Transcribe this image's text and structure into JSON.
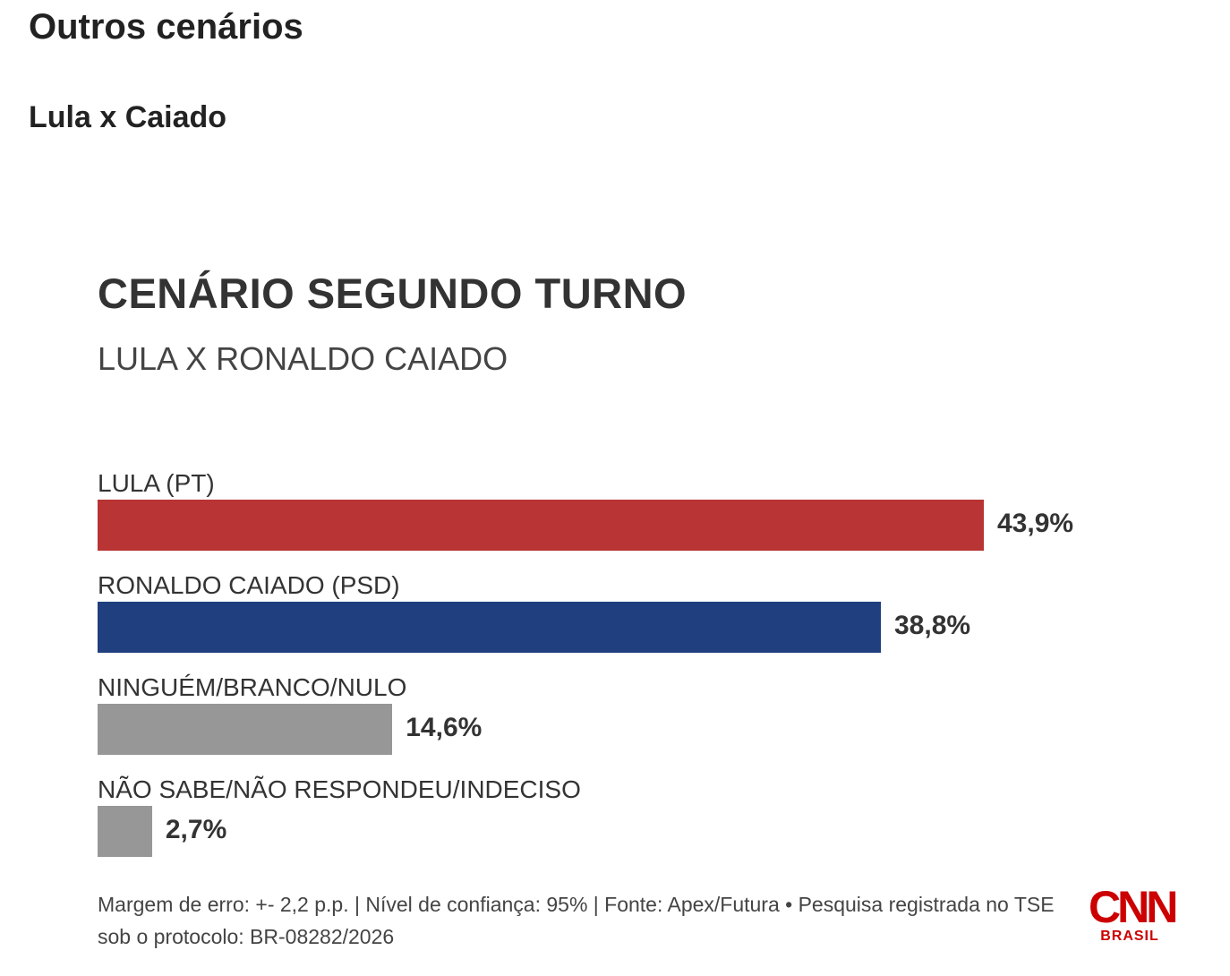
{
  "header": {
    "title": "Outros cenários",
    "subtitle": "Lula x Caiado"
  },
  "chart_data": {
    "type": "bar",
    "orientation": "horizontal",
    "title": "CENÁRIO SEGUNDO TURNO",
    "subtitle": "LULA X RONALDO CAIADO",
    "categories": [
      "LULA (PT)",
      "RONALDO CAIADO (PSD)",
      "NINGUÉM/BRANCO/NULO",
      "NÃO SABE/NÃO RESPONDEU/INDECISO"
    ],
    "values": [
      43.9,
      38.8,
      14.6,
      2.7
    ],
    "value_labels": [
      "43,9%",
      "38,8%",
      "14,6%",
      "2,7%"
    ],
    "colors": [
      "#b93434",
      "#1f3f7e",
      "#979797",
      "#979797"
    ],
    "footnote": "Margem de erro: +- 2,2 p.p. | Nível de confiança: 95% | Fonte: Apex/Futura • Pesquisa registrada no TSE sob o protocolo: BR-08282/2026"
  },
  "logo": {
    "name": "CNN",
    "region": "BRASIL"
  }
}
